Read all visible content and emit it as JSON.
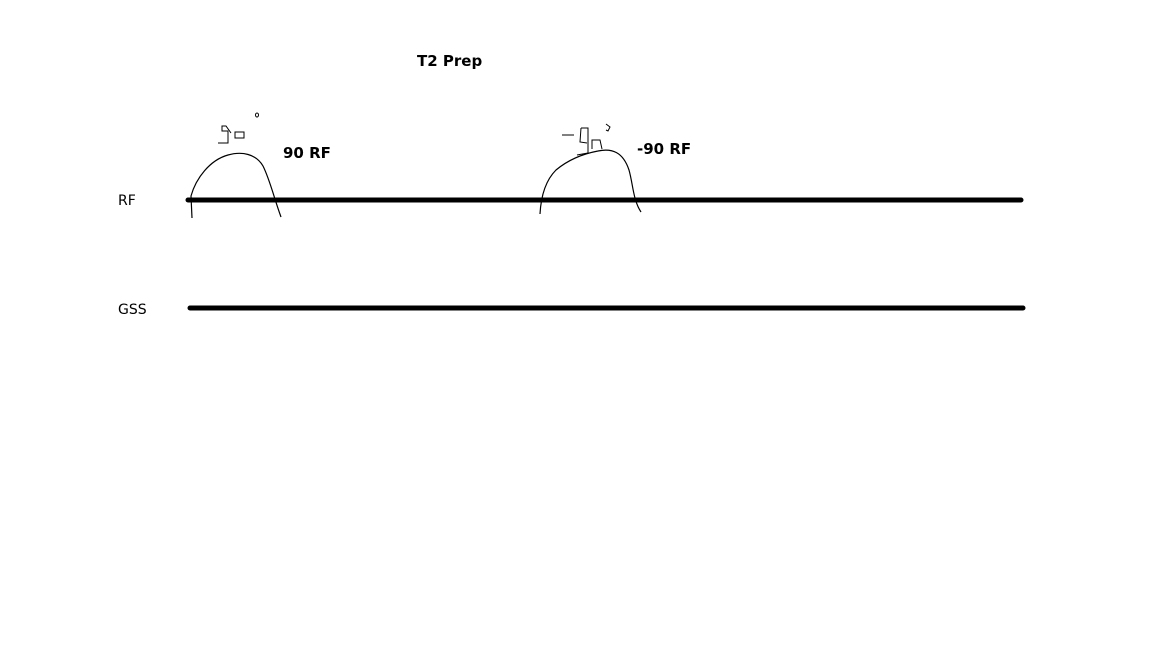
{
  "diagram": {
    "title": "T2 Prep",
    "rows": [
      {
        "label": "RF"
      },
      {
        "label": "GSS"
      }
    ],
    "pulses": [
      {
        "label": "90 RF"
      },
      {
        "label": "-90 RF"
      }
    ]
  }
}
